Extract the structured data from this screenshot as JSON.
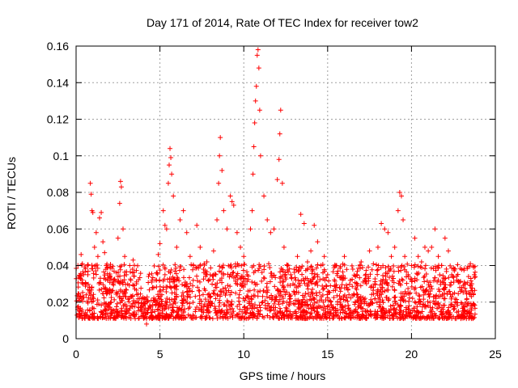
{
  "chart_data": {
    "type": "scatter",
    "title": "Day 171 of 2014, Rate Of TEC Index for receiver tow2",
    "xlabel": "GPS time / hours",
    "ylabel": "ROTI / TECUs",
    "xlim": [
      0,
      25
    ],
    "ylim": [
      0,
      0.16
    ],
    "xticks": [
      0,
      5,
      10,
      15,
      20,
      25
    ],
    "xtick_labels": [
      "0",
      "5",
      "10",
      "15",
      "20",
      "25"
    ],
    "yticks": [
      0,
      0.02,
      0.04,
      0.06,
      0.08,
      0.1,
      0.12,
      0.14,
      0.16
    ],
    "ytick_labels": [
      "0",
      "0.02",
      "0.04",
      "0.06",
      "0.08",
      "0.1",
      "0.12",
      "0.14",
      "0.16"
    ],
    "grid": true,
    "marker": "+",
    "color": "#ff0000",
    "series": [
      {
        "name": "ROTI",
        "points": [
          [
            0.1,
            0.016
          ],
          [
            0.2,
            0.021
          ],
          [
            0.3,
            0.046
          ],
          [
            0.4,
            0.03
          ],
          [
            0.5,
            0.013
          ],
          [
            0.6,
            0.024
          ],
          [
            0.7,
            0.035
          ],
          [
            0.8,
            0.028
          ],
          [
            0.85,
            0.085
          ],
          [
            0.9,
            0.079
          ],
          [
            0.95,
            0.07
          ],
          [
            1.0,
            0.069
          ],
          [
            1.1,
            0.05
          ],
          [
            1.2,
            0.058
          ],
          [
            1.3,
            0.045
          ],
          [
            1.4,
            0.066
          ],
          [
            1.5,
            0.069
          ],
          [
            1.6,
            0.053
          ],
          [
            1.7,
            0.047
          ],
          [
            1.8,
            0.04
          ],
          [
            1.9,
            0.032
          ],
          [
            2.0,
            0.025
          ],
          [
            2.2,
            0.03
          ],
          [
            2.4,
            0.036
          ],
          [
            2.5,
            0.055
          ],
          [
            2.6,
            0.074
          ],
          [
            2.65,
            0.086
          ],
          [
            2.7,
            0.083
          ],
          [
            2.8,
            0.06
          ],
          [
            2.9,
            0.045
          ],
          [
            3.0,
            0.035
          ],
          [
            3.2,
            0.04
          ],
          [
            3.4,
            0.043
          ],
          [
            3.6,
            0.03
          ],
          [
            3.8,
            0.022
          ],
          [
            4.0,
            0.014
          ],
          [
            4.2,
            0.008
          ],
          [
            4.4,
            0.018
          ],
          [
            4.6,
            0.021
          ],
          [
            4.8,
            0.032
          ],
          [
            4.9,
            0.046
          ],
          [
            5.0,
            0.052
          ],
          [
            5.2,
            0.07
          ],
          [
            5.3,
            0.062
          ],
          [
            5.4,
            0.06
          ],
          [
            5.5,
            0.085
          ],
          [
            5.55,
            0.095
          ],
          [
            5.6,
            0.104
          ],
          [
            5.65,
            0.099
          ],
          [
            5.7,
            0.09
          ],
          [
            5.8,
            0.078
          ],
          [
            6.0,
            0.05
          ],
          [
            6.2,
            0.065
          ],
          [
            6.4,
            0.07
          ],
          [
            6.6,
            0.058
          ],
          [
            6.8,
            0.045
          ],
          [
            7.0,
            0.04
          ],
          [
            7.2,
            0.062
          ],
          [
            7.4,
            0.05
          ],
          [
            7.6,
            0.038
          ],
          [
            7.8,
            0.042
          ],
          [
            8.0,
            0.035
          ],
          [
            8.2,
            0.048
          ],
          [
            8.4,
            0.065
          ],
          [
            8.5,
            0.085
          ],
          [
            8.55,
            0.1
          ],
          [
            8.6,
            0.11
          ],
          [
            8.7,
            0.092
          ],
          [
            8.8,
            0.07
          ],
          [
            9.0,
            0.06
          ],
          [
            9.2,
            0.078
          ],
          [
            9.3,
            0.075
          ],
          [
            9.4,
            0.073
          ],
          [
            9.6,
            0.058
          ],
          [
            9.8,
            0.05
          ],
          [
            10.0,
            0.045
          ],
          [
            10.2,
            0.035
          ],
          [
            10.4,
            0.06
          ],
          [
            10.5,
            0.07
          ],
          [
            10.55,
            0.09
          ],
          [
            10.6,
            0.105
          ],
          [
            10.65,
            0.118
          ],
          [
            10.7,
            0.13
          ],
          [
            10.75,
            0.138
          ],
          [
            10.8,
            0.155
          ],
          [
            10.85,
            0.158
          ],
          [
            10.9,
            0.148
          ],
          [
            10.95,
            0.125
          ],
          [
            11.0,
            0.1
          ],
          [
            11.2,
            0.078
          ],
          [
            11.4,
            0.065
          ],
          [
            11.6,
            0.058
          ],
          [
            11.8,
            0.06
          ],
          [
            12.0,
            0.087
          ],
          [
            12.1,
            0.098
          ],
          [
            12.15,
            0.112
          ],
          [
            12.2,
            0.125
          ],
          [
            12.3,
            0.085
          ],
          [
            12.4,
            0.05
          ],
          [
            12.6,
            0.04
          ],
          [
            12.8,
            0.035
          ],
          [
            13.0,
            0.038
          ],
          [
            13.2,
            0.045
          ],
          [
            13.4,
            0.068
          ],
          [
            13.6,
            0.063
          ],
          [
            13.8,
            0.042
          ],
          [
            14.0,
            0.048
          ],
          [
            14.2,
            0.062
          ],
          [
            14.4,
            0.053
          ],
          [
            14.6,
            0.04
          ],
          [
            14.8,
            0.045
          ],
          [
            15.0,
            0.035
          ],
          [
            15.5,
            0.04
          ],
          [
            16.0,
            0.045
          ],
          [
            16.5,
            0.038
          ],
          [
            17.0,
            0.042
          ],
          [
            17.5,
            0.048
          ],
          [
            18.0,
            0.05
          ],
          [
            18.2,
            0.063
          ],
          [
            18.4,
            0.06
          ],
          [
            18.6,
            0.058
          ],
          [
            18.8,
            0.045
          ],
          [
            19.0,
            0.05
          ],
          [
            19.2,
            0.07
          ],
          [
            19.3,
            0.08
          ],
          [
            19.4,
            0.078
          ],
          [
            19.5,
            0.065
          ],
          [
            19.6,
            0.045
          ],
          [
            19.8,
            0.035
          ],
          [
            20.0,
            0.04
          ],
          [
            20.2,
            0.055
          ],
          [
            20.4,
            0.045
          ],
          [
            20.6,
            0.042
          ],
          [
            20.8,
            0.05
          ],
          [
            21.0,
            0.048
          ],
          [
            21.2,
            0.05
          ],
          [
            21.4,
            0.06
          ],
          [
            21.6,
            0.045
          ],
          [
            21.8,
            0.04
          ],
          [
            22.0,
            0.055
          ],
          [
            22.2,
            0.048
          ],
          [
            22.4,
            0.035
          ],
          [
            22.6,
            0.02
          ],
          [
            22.8,
            0.015
          ],
          [
            23.0,
            0.028
          ],
          [
            23.2,
            0.03
          ],
          [
            23.4,
            0.034
          ],
          [
            23.6,
            0.03
          ],
          [
            23.7,
            0.039
          ]
        ]
      }
    ],
    "density_band": {
      "description": "dense band of points between ~0.005 and ~0.035 TECUs from 0 to 23.8 h",
      "x_range": [
        0,
        23.8
      ],
      "y_range": [
        0.005,
        0.035
      ]
    }
  }
}
